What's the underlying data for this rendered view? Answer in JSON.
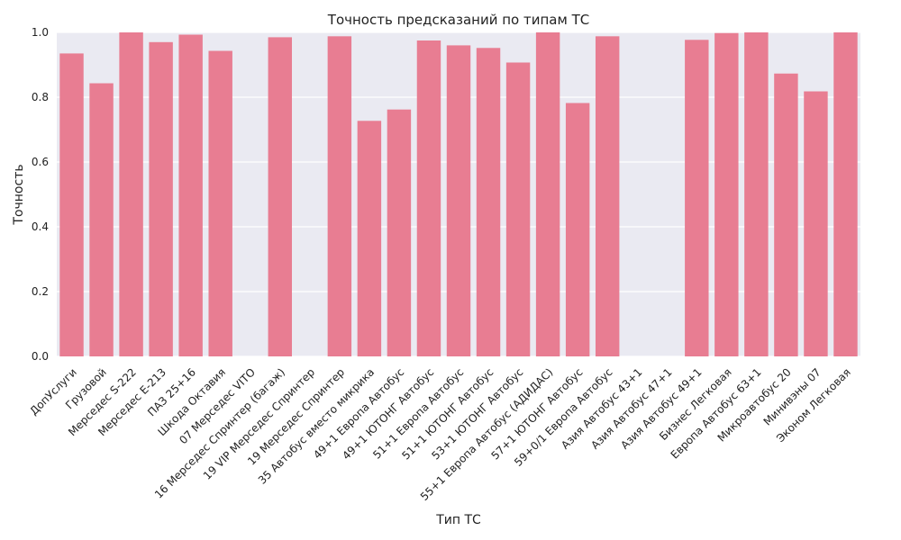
{
  "chart_data": {
    "type": "bar",
    "title": "Точность предсказаний по типам ТС",
    "xlabel": "Тип ТС",
    "ylabel": "Точность",
    "ylim": [
      0,
      1
    ],
    "yticks": [
      "0.0",
      "0.2",
      "0.4",
      "0.6",
      "0.8",
      "1.0"
    ],
    "grid": true,
    "bar_color": "#e87d92",
    "background_color": "#eaeaf2",
    "categories": [
      "ДопУслуги",
      "Грузовой",
      "Мерседес S-222",
      "Мерседес Е-213",
      "ПАЗ 25+16",
      "Шкода Октавия",
      "07 Мерседес VITO",
      "16 Мерседес Спринтер (багаж)",
      "19 VIP Мерседес Спринтер",
      "19 Мерседес Спринтер",
      "35 Автобус вместо микрика",
      "49+1 Европа Автобус",
      "49+1 ЮТОНГ Автобус",
      "51+1 Европа Автобус",
      "51+1 ЮТОНГ Автобус",
      "53+1 ЮТОНГ Автобус",
      "55+1 Европа Автобус (АДИДАС)",
      "57+1 ЮТОНГ Автобус",
      "59+0/1 Европа Автобус",
      "Азия Автобус 43+1",
      "Азия Автобус 47+1",
      "Азия Автобус 49+1",
      "Бизнес Легковая",
      "Европа Автобус 63+1",
      "Микроавтобус 20",
      "Минивэны 07",
      "Эконом Легковая"
    ],
    "values": [
      0.935,
      0.843,
      1.0,
      0.97,
      0.993,
      0.943,
      0.0,
      0.985,
      0.0,
      0.988,
      0.727,
      0.762,
      0.975,
      0.96,
      0.952,
      0.907,
      1.0,
      0.782,
      0.988,
      0.0,
      0.0,
      0.977,
      0.998,
      1.0,
      0.873,
      0.818,
      1.0
    ]
  }
}
